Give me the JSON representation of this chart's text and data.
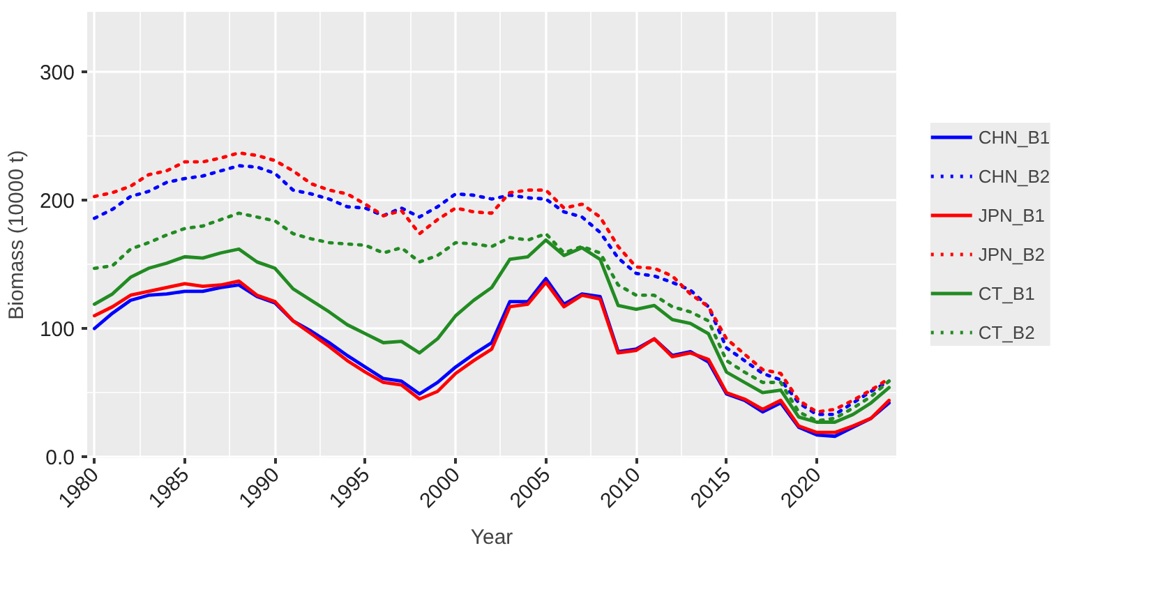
{
  "chart_data": {
    "type": "line",
    "xlabel": "Year",
    "ylabel": "Biomass (10000 t)",
    "x": [
      1980,
      1981,
      1982,
      1983,
      1984,
      1985,
      1986,
      1987,
      1988,
      1989,
      1990,
      1991,
      1992,
      1993,
      1994,
      1995,
      1996,
      1997,
      1998,
      1999,
      2000,
      2001,
      2002,
      2003,
      2004,
      2005,
      2006,
      2007,
      2008,
      2009,
      2010,
      2011,
      2012,
      2013,
      2014,
      2015,
      2016,
      2017,
      2018,
      2019,
      2020,
      2021,
      2022,
      2023,
      2024
    ],
    "xlim": [
      1979.6,
      2024.4
    ],
    "xticks": [
      1980,
      1985,
      1990,
      1995,
      2000,
      2005,
      2010,
      2015,
      2020
    ],
    "ylim": [
      -1,
      347
    ],
    "yticks": [
      {
        "value": 0,
        "label": "0.0"
      },
      100,
      200,
      300
    ],
    "grid": true,
    "legend": "right",
    "series": [
      {
        "name": "CHN_B1",
        "color": "#0000ff",
        "line_style": "solid",
        "values": [
          100,
          112,
          122,
          126,
          127,
          129,
          129,
          132,
          134,
          125,
          120,
          106,
          98,
          89,
          79,
          70,
          61,
          59,
          49,
          58,
          70,
          80,
          89,
          121,
          121,
          139,
          119,
          127,
          125,
          82,
          84,
          92,
          79,
          82,
          74,
          49,
          44,
          35,
          42,
          23,
          17,
          16,
          23,
          30,
          42
        ]
      },
      {
        "name": "CHN_B2",
        "color": "#0000ff",
        "line_style": "dotted",
        "values": [
          186,
          193,
          203,
          207,
          214,
          217,
          219,
          223,
          227,
          226,
          221,
          208,
          205,
          201,
          195,
          194,
          188,
          194,
          187,
          195,
          205,
          204,
          201,
          204,
          202,
          201,
          191,
          187,
          175,
          155,
          143,
          141,
          136,
          130,
          117,
          85,
          75,
          65,
          60,
          42,
          33,
          33,
          42,
          51,
          59
        ]
      },
      {
        "name": "JPN_B1",
        "color": "#ff0000",
        "line_style": "solid",
        "values": [
          110,
          117,
          126,
          129,
          132,
          135,
          133,
          134,
          137,
          126,
          121,
          106,
          96,
          86,
          75,
          66,
          58,
          56,
          45,
          51,
          65,
          75,
          84,
          117,
          119,
          136,
          117,
          126,
          123,
          81,
          83,
          92,
          78,
          81,
          76,
          50,
          45,
          37,
          44,
          24,
          19,
          19,
          24,
          30,
          44
        ]
      },
      {
        "name": "JPN_B2",
        "color": "#ff0000",
        "line_style": "dotted",
        "values": [
          203,
          206,
          211,
          220,
          223,
          230,
          230,
          233,
          237,
          235,
          231,
          223,
          213,
          208,
          205,
          197,
          188,
          192,
          174,
          185,
          194,
          191,
          190,
          206,
          208,
          208,
          194,
          197,
          187,
          164,
          148,
          147,
          141,
          127,
          117,
          92,
          80,
          68,
          65,
          44,
          35,
          37,
          44,
          52,
          61
        ]
      },
      {
        "name": "CT_B1",
        "color": "#228b22",
        "line_style": "solid",
        "values": [
          119,
          127,
          140,
          147,
          151,
          156,
          155,
          159,
          162,
          152,
          147,
          131,
          122,
          113,
          103,
          96,
          89,
          90,
          81,
          92,
          110,
          122,
          132,
          154,
          156,
          169,
          157,
          163,
          154,
          118,
          115,
          118,
          107,
          104,
          96,
          66,
          58,
          50,
          52,
          31,
          27,
          27,
          33,
          42,
          54
        ]
      },
      {
        "name": "CT_B2",
        "color": "#228b22",
        "line_style": "dotted",
        "values": [
          147,
          149,
          162,
          167,
          173,
          178,
          180,
          185,
          190,
          187,
          184,
          174,
          170,
          167,
          166,
          165,
          159,
          163,
          152,
          157,
          167,
          166,
          164,
          171,
          169,
          174,
          159,
          164,
          159,
          134,
          126,
          126,
          117,
          113,
          106,
          75,
          66,
          58,
          58,
          35,
          28,
          30,
          38,
          47,
          59
        ]
      }
    ]
  }
}
